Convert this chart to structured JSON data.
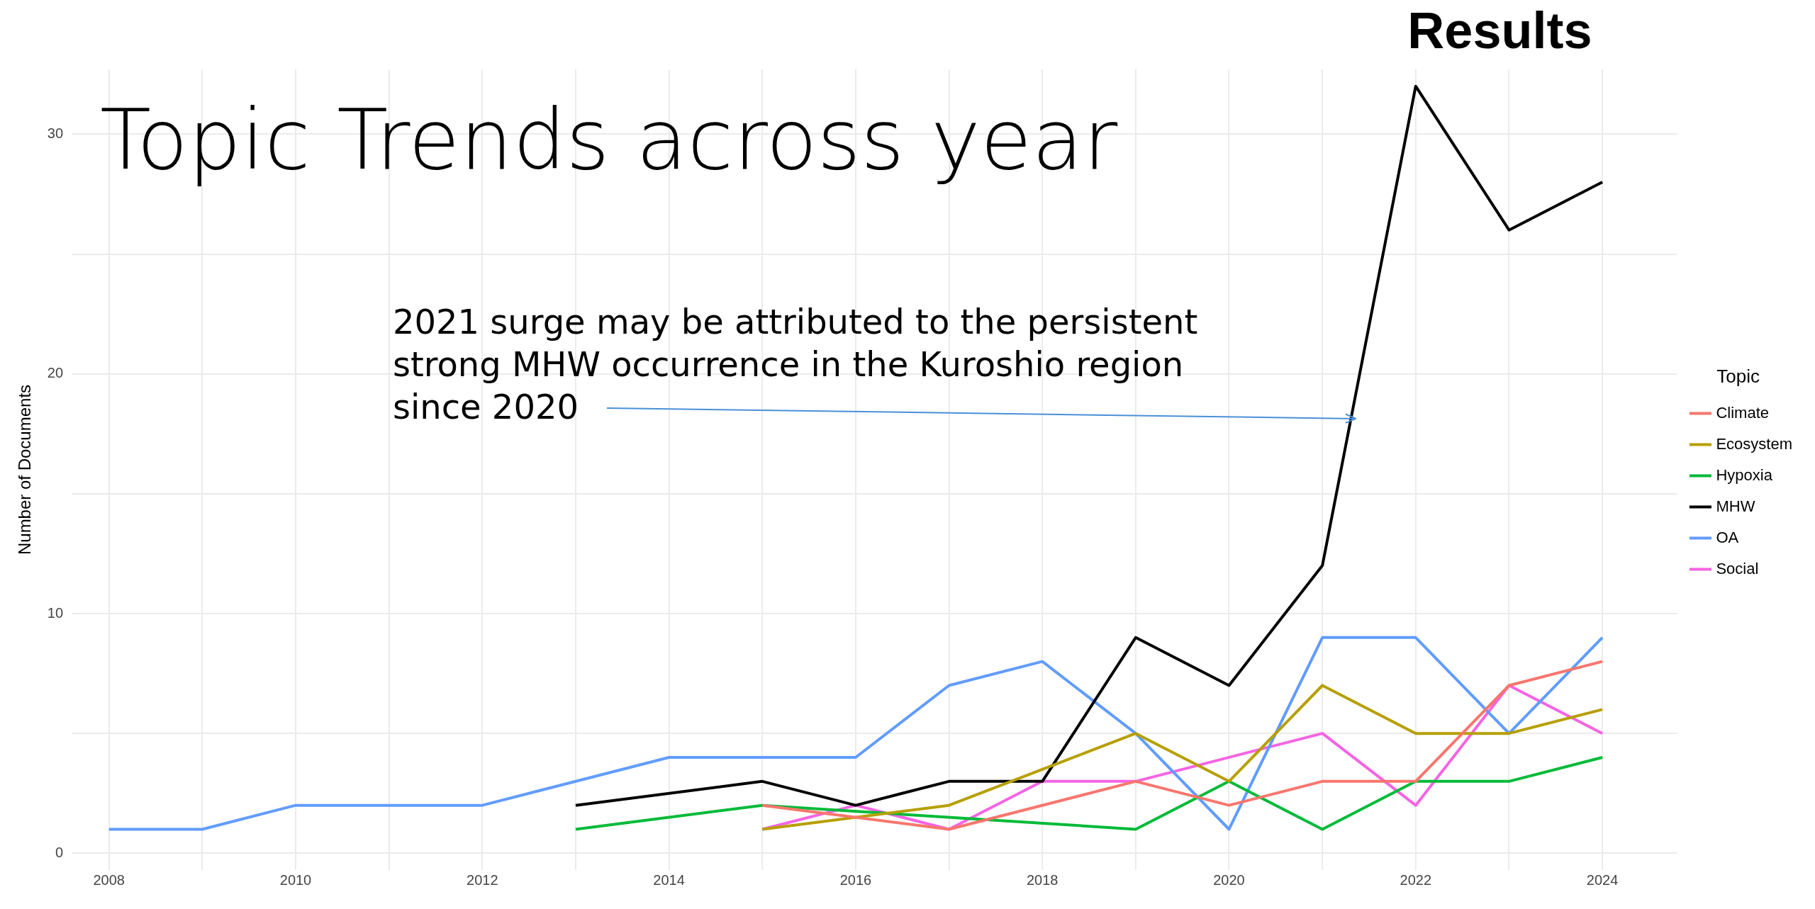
{
  "chart_data": {
    "type": "line",
    "title": "Topic Trends across year",
    "subtitle": "Results",
    "ylabel": "Number of Documents",
    "legend_title": "Topic",
    "series": [
      {
        "name": "Climate",
        "color": "#f8766d",
        "x": [
          2015,
          2017,
          2019,
          2020,
          2021,
          2022,
          2023,
          2024
        ],
        "values": [
          2,
          1,
          3,
          2,
          3,
          3,
          7,
          8
        ]
      },
      {
        "name": "Ecosystem",
        "color": "#b79f00",
        "x": [
          2015,
          2017,
          2019,
          2020,
          2021,
          2022,
          2023,
          2024
        ],
        "values": [
          1,
          2,
          5,
          3,
          7,
          5,
          5,
          6
        ]
      },
      {
        "name": "Hypoxia",
        "color": "#00ba38",
        "x": [
          2013,
          2015,
          2019,
          2020,
          2021,
          2022,
          2023,
          2024
        ],
        "values": [
          1,
          2,
          1,
          3,
          1,
          3,
          3,
          4
        ]
      },
      {
        "name": "MHW",
        "color": "#000000",
        "x": [
          2013,
          2015,
          2016,
          2017,
          2018,
          2019,
          2020,
          2021,
          2022,
          2023,
          2024
        ],
        "values": [
          2,
          3,
          2,
          3,
          3,
          9,
          7,
          12,
          32,
          26,
          28
        ]
      },
      {
        "name": "OA",
        "color": "#619cff",
        "x": [
          2008,
          2009,
          2010,
          2012,
          2014,
          2016,
          2017,
          2018,
          2019,
          2020,
          2021,
          2022,
          2023,
          2024
        ],
        "values": [
          1,
          1,
          2,
          2,
          4,
          4,
          7,
          8,
          5,
          1,
          9,
          9,
          5,
          9
        ]
      },
      {
        "name": "Social",
        "color": "#f564e3",
        "x": [
          2015,
          2016,
          2017,
          2018,
          2019,
          2021,
          2022,
          2023,
          2024
        ],
        "values": [
          1,
          2,
          1,
          3,
          3,
          5,
          2,
          7,
          5
        ]
      }
    ],
    "xlim": [
      2007.6,
      2024.8
    ],
    "xticks": [
      2008,
      {
        "value": 2009,
        "label": null
      },
      2010,
      {
        "value": 2011,
        "label": null
      },
      2012,
      {
        "value": 2013,
        "label": null
      },
      2014,
      {
        "value": 2015,
        "label": null
      },
      2016,
      {
        "value": 2017,
        "label": null
      },
      2018,
      {
        "value": 2019,
        "label": null
      },
      2020,
      {
        "value": 2021,
        "label": null
      },
      2022,
      {
        "value": 2023,
        "label": null
      },
      2024
    ],
    "ylim": [
      -0.7,
      32.7
    ],
    "yticks": [
      0,
      {
        "value": 5,
        "label": null
      },
      10,
      {
        "value": 15,
        "label": null
      },
      20,
      {
        "value": 25,
        "label": null
      },
      30
    ],
    "grid": true,
    "legend": "right",
    "marker": "none",
    "line_style": "solid",
    "annotations": [
      "2021 surge may be attributed to the persistent strong MHW occurrence in the Kuroshio region since 2020"
    ]
  }
}
